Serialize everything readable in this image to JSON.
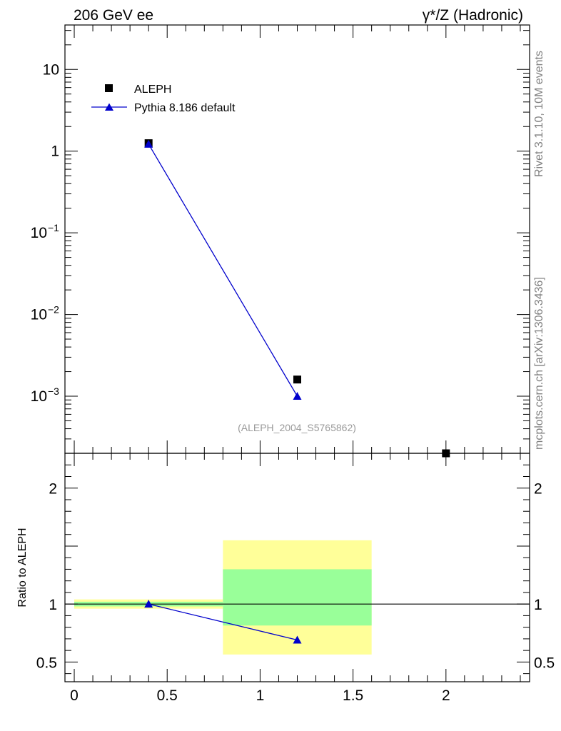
{
  "header": {
    "left_title": "206 GeV ee",
    "right_title": "γ*/Z (Hadronic)"
  },
  "side_labels": {
    "rivet": "Rivet 3.1.10,  10M events",
    "mcplots": "mcplots.cern.ch [arXiv:1306.3436]"
  },
  "watermark": "(ALEPH_2004_S5765862)",
  "ratio_axis_label": "Ratio to ALEPH",
  "legend": {
    "data_label": "ALEPH",
    "mc_label": "Pythia 8.186 default"
  },
  "colors": {
    "data": "#000000",
    "mc": "#0000cc",
    "band_outer": "#ffff99",
    "band_inner": "#99ff99"
  },
  "chart_data": [
    {
      "type": "scatter",
      "panel": "main",
      "log_y": true,
      "xlim": [
        -0.05,
        2.45
      ],
      "ylim": [
        0.0002,
        35
      ],
      "y_tick_labels": [
        {
          "v": 10,
          "text": "10",
          "exp": ""
        },
        {
          "v": 1,
          "text": "1",
          "exp": ""
        },
        {
          "v": 0.1,
          "text": "10",
          "exp": "−1"
        },
        {
          "v": 0.01,
          "text": "10",
          "exp": "−2"
        },
        {
          "v": 0.001,
          "text": "10",
          "exp": "−3"
        }
      ],
      "series": [
        {
          "name": "ALEPH",
          "marker": "square",
          "x": [
            0.4,
            1.2,
            2.0
          ],
          "y": [
            1.25,
            0.0016,
            0.0002
          ]
        },
        {
          "name": "Pythia 8.186 default",
          "marker": "triangle",
          "line": true,
          "x": [
            0.4,
            1.2
          ],
          "y": [
            1.22,
            0.001
          ]
        }
      ]
    },
    {
      "type": "line",
      "panel": "ratio",
      "xlim": [
        -0.05,
        2.45
      ],
      "ylim": [
        0.33,
        2.3
      ],
      "x_tick_labels": [
        {
          "v": 0,
          "text": "0"
        },
        {
          "v": 0.5,
          "text": "0.5"
        },
        {
          "v": 1,
          "text": "1"
        },
        {
          "v": 1.5,
          "text": "1.5"
        },
        {
          "v": 2,
          "text": "2"
        }
      ],
      "y_tick_labels": [
        {
          "v": 2,
          "text": "2"
        },
        {
          "v": 1,
          "text": "1"
        },
        {
          "v": 0.5,
          "text": "0.5"
        }
      ],
      "reference": 1,
      "bands": [
        {
          "x0": 0.0,
          "x1": 0.8,
          "outer": [
            0.96,
            1.04
          ],
          "inner": [
            0.98,
            1.02
          ]
        },
        {
          "x0": 0.8,
          "x1": 1.6,
          "outer": [
            0.565,
            1.55
          ],
          "inner": [
            0.815,
            1.3
          ]
        }
      ],
      "series": [
        {
          "name": "Pythia 8.186 default",
          "marker": "triangle",
          "x": [
            0.4,
            1.2
          ],
          "y": [
            1.0,
            0.69
          ]
        }
      ]
    }
  ]
}
